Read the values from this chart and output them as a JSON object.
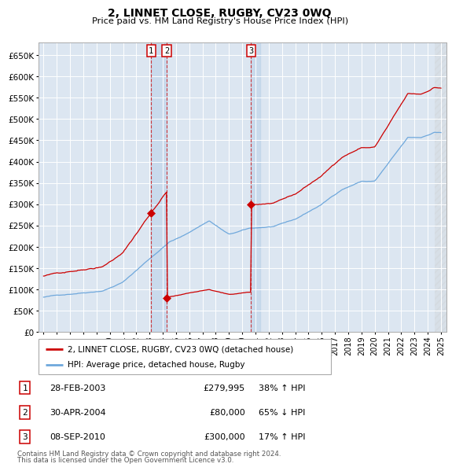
{
  "title": "2, LINNET CLOSE, RUGBY, CV23 0WQ",
  "subtitle": "Price paid vs. HM Land Registry's House Price Index (HPI)",
  "legend_line1": "2, LINNET CLOSE, RUGBY, CV23 0WQ (detached house)",
  "legend_line2": "HPI: Average price, detached house, Rugby",
  "footer1": "Contains HM Land Registry data © Crown copyright and database right 2024.",
  "footer2": "This data is licensed under the Open Government Licence v3.0.",
  "transactions": [
    {
      "num": 1,
      "date": "28-FEB-2003",
      "price": "£279,995",
      "pct": "38%",
      "dir": "↑",
      "label": "HPI",
      "year": 2003.12
    },
    {
      "num": 2,
      "date": "30-APR-2004",
      "price": "£80,000",
      "pct": "65%",
      "dir": "↓",
      "label": "HPI",
      "year": 2004.29
    },
    {
      "num": 3,
      "date": "08-SEP-2010",
      "price": "£300,000",
      "pct": "17%",
      "dir": "↑",
      "label": "HPI",
      "year": 2010.67
    }
  ],
  "hpi_color": "#6fa8dc",
  "price_color": "#cc0000",
  "plot_bg": "#dce6f1",
  "ylim": [
    0,
    680000
  ],
  "yticks": [
    0,
    50000,
    100000,
    150000,
    200000,
    250000,
    300000,
    350000,
    400000,
    450000,
    500000,
    550000,
    600000,
    650000
  ],
  "xlim_start": 1994.6,
  "xlim_end": 2025.4,
  "hatch_start": 2024.5,
  "t1_price": 279995,
  "t2_price": 80000,
  "t3_price": 300000
}
